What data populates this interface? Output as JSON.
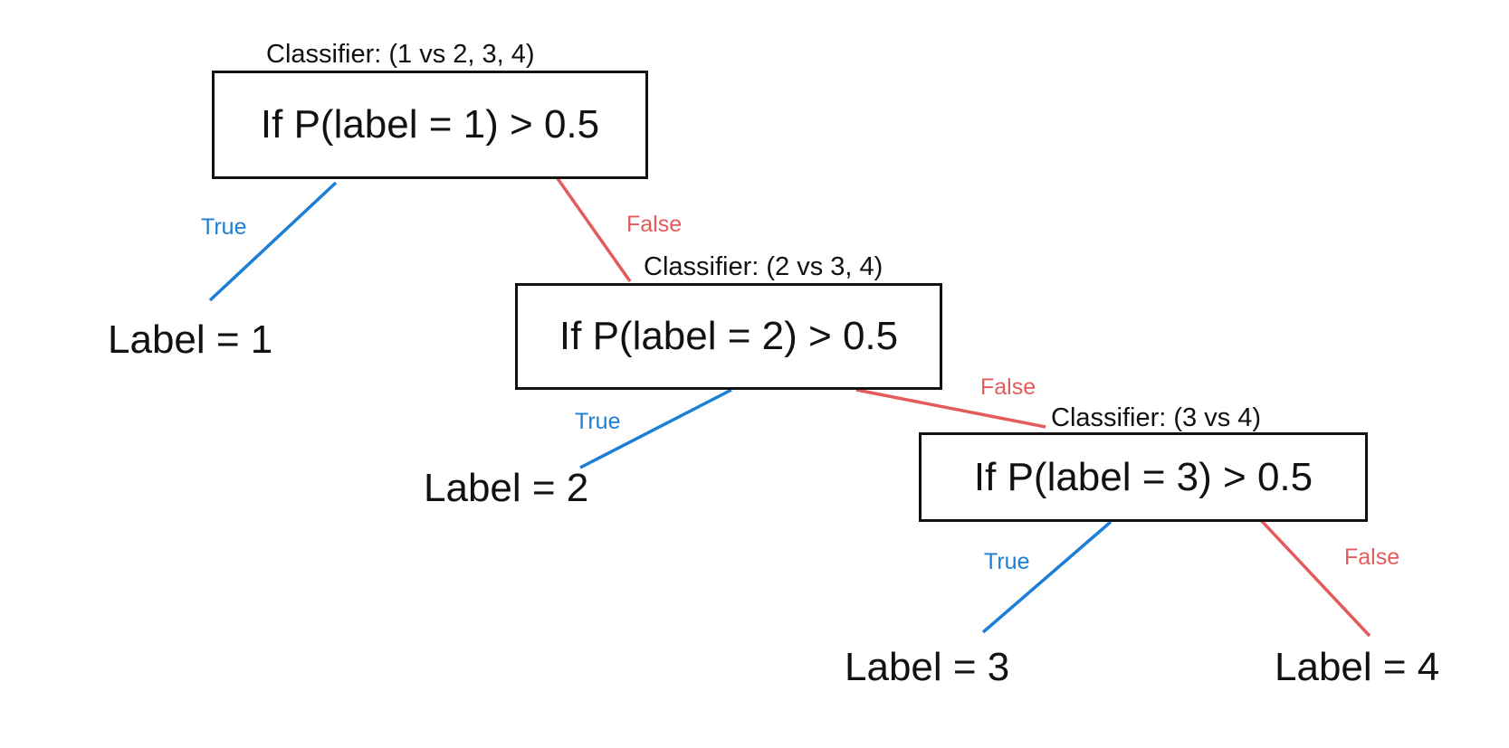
{
  "colors": {
    "true_edge": "#1c7ed6",
    "false_edge": "#e35b5b",
    "box_border": "#111111"
  },
  "nodes": [
    {
      "classifier": "Classifier: (1 vs 2, 3, 4)",
      "condition": "If P(label = 1) > 0.5"
    },
    {
      "classifier": "Classifier: (2 vs 3, 4)",
      "condition": "If P(label = 2) > 0.5"
    },
    {
      "classifier": "Classifier: (3 vs 4)",
      "condition": "If P(label = 3) > 0.5"
    }
  ],
  "leaves": [
    {
      "text": "Label = 1"
    },
    {
      "text": "Label = 2"
    },
    {
      "text": "Label = 3"
    },
    {
      "text": "Label = 4"
    }
  ],
  "edges": [
    {
      "label": "True"
    },
    {
      "label": "False"
    },
    {
      "label": "True"
    },
    {
      "label": "False"
    },
    {
      "label": "True"
    },
    {
      "label": "False"
    }
  ]
}
